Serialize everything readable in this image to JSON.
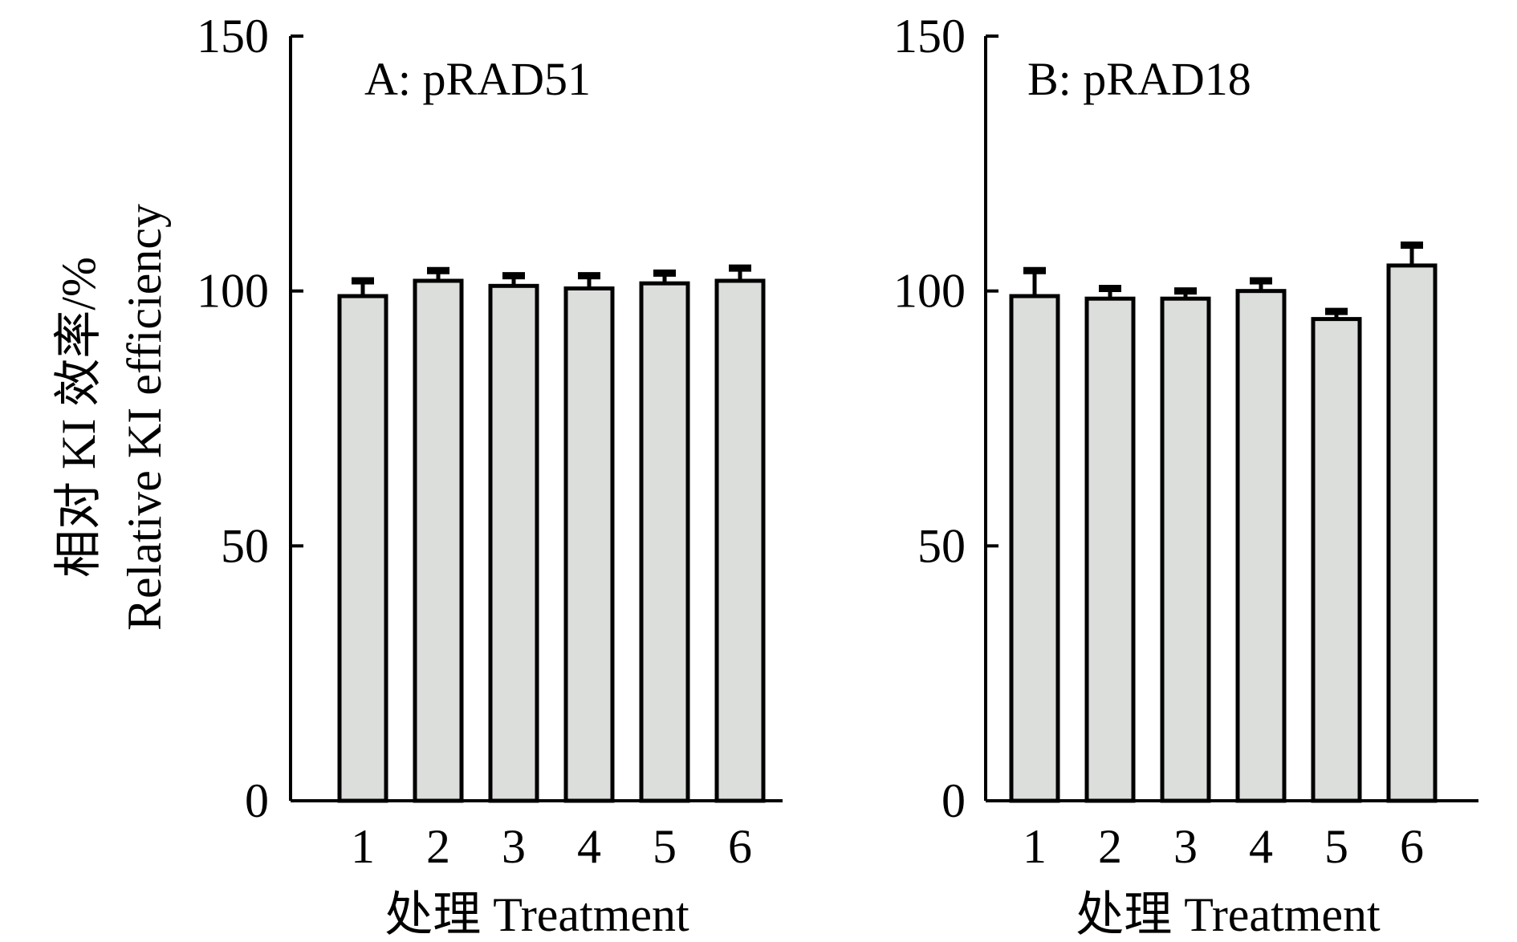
{
  "chart_data": [
    {
      "type": "bar",
      "title": "A: pRAD51",
      "xlabel": "处理 Treatment",
      "ylabel_lines": [
        "相对 KI 效率/%",
        "Relative KI efficiency"
      ],
      "categories": [
        "1",
        "2",
        "3",
        "4",
        "5",
        "6"
      ],
      "values": [
        99,
        102,
        101,
        100.5,
        101.5,
        102
      ],
      "errors": [
        3,
        2,
        2,
        2.5,
        2,
        2.5
      ],
      "ylim": [
        0,
        150
      ],
      "yticks": [
        "0",
        "50",
        "100",
        "150"
      ],
      "grid": false,
      "colors": {
        "bar_fill": "#dcdedb",
        "bar_stroke": "#000000",
        "axis": "#000000"
      }
    },
    {
      "type": "bar",
      "title": "B: pRAD18",
      "xlabel": "处理 Treatment",
      "categories": [
        "1",
        "2",
        "3",
        "4",
        "5",
        "6"
      ],
      "values": [
        99,
        98.5,
        98.5,
        100,
        94.5,
        105
      ],
      "errors": [
        5,
        2,
        1.5,
        2,
        1.5,
        4
      ],
      "ylim": [
        0,
        150
      ],
      "yticks": [
        "0",
        "50",
        "100",
        "150"
      ],
      "grid": false,
      "colors": {
        "bar_fill": "#dcdedb",
        "bar_stroke": "#000000",
        "axis": "#000000"
      }
    }
  ]
}
